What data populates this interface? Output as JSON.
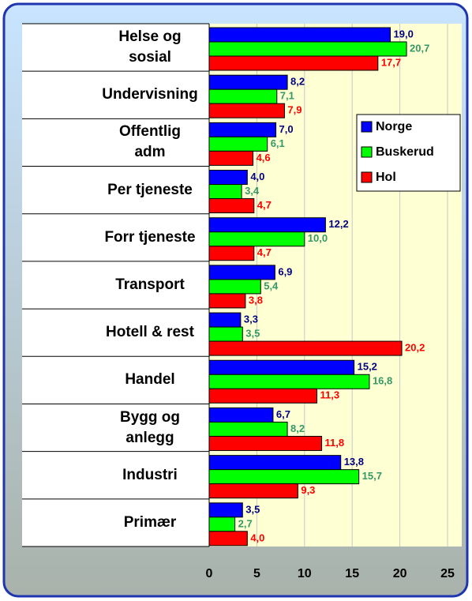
{
  "chart_data": {
    "type": "bar",
    "orientation": "horizontal",
    "categories": [
      "Helse og\nsosial",
      "Undervisning",
      "Offentlig\nadm",
      "Per tjeneste",
      "Forr tjeneste",
      "Transport",
      "Hotell & rest",
      "Handel",
      "Bygg og\nanlegg",
      "Industri",
      "Primær"
    ],
    "series": [
      {
        "name": "Norge",
        "color": "#0000ff",
        "label_color": "#000080",
        "values": [
          19.0,
          8.2,
          7.0,
          4.0,
          12.2,
          6.9,
          3.3,
          15.2,
          6.7,
          13.8,
          3.5
        ],
        "value_labels": [
          "19,0",
          "8,2",
          "7,0",
          "4,0",
          "12,2",
          "6,9",
          "3,3",
          "15,2",
          "6,7",
          "13,8",
          "3,5"
        ]
      },
      {
        "name": "Buskerud",
        "color": "#00ff00",
        "label_color": "#339966",
        "values": [
          20.7,
          7.1,
          6.1,
          3.4,
          10.0,
          5.4,
          3.5,
          16.8,
          8.2,
          15.7,
          2.7
        ],
        "value_labels": [
          "20,7",
          "7,1",
          "6,1",
          "3,4",
          "10,0",
          "5,4",
          "3,5",
          "16,8",
          "8,2",
          "15,7",
          "2,7"
        ]
      },
      {
        "name": "Hol",
        "color": "#ff0000",
        "label_color": "#ff0000",
        "values": [
          17.7,
          7.9,
          4.6,
          4.7,
          4.7,
          3.8,
          20.2,
          11.3,
          11.8,
          9.3,
          4.0
        ],
        "value_labels": [
          "17,7",
          "7,9",
          "4,6",
          "4,7",
          "4,7",
          "3,8",
          "20,2",
          "11,3",
          "11,8",
          "9,3",
          "4,0"
        ]
      }
    ],
    "xlim": [
      0,
      25
    ],
    "xticks": [
      0,
      5,
      10,
      15,
      20,
      25
    ],
    "grid": true,
    "legend": "upper right"
  }
}
